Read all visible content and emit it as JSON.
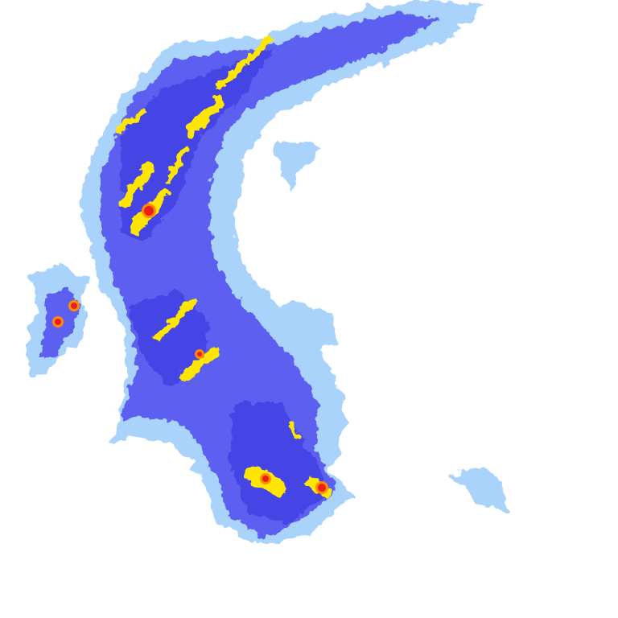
{
  "map": {
    "type": "weather-radar-precipitation",
    "background": "#ffffff",
    "palette": {
      "light": "#a9d3fb",
      "moderate": "#5c5ff0",
      "heavy": "#3b3be0",
      "intense": "#ffe600",
      "very_intense": "#ff8a00",
      "extreme": "#e8201a"
    }
  }
}
